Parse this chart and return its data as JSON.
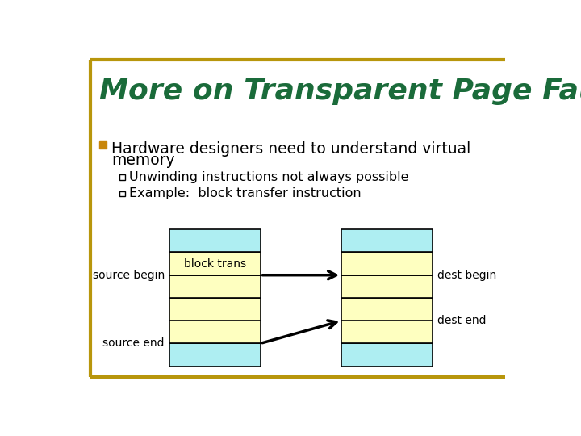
{
  "title": "More on Transparent Page Faults",
  "title_color": "#1a6b3a",
  "title_fontsize": 26,
  "bg_color": "#ffffff",
  "border_color": "#b8960c",
  "bullet_color": "#c8860a",
  "bullet_text_line1": "Hardware designers need to understand virtual",
  "bullet_text_line2": "memory",
  "sub_bullets": [
    "Unwinding instructions not always possible",
    "Example:  block transfer instruction"
  ],
  "cyan_color": "#aeeef2",
  "yellow_color": "#feffc0",
  "block_trans_label": "block trans",
  "source_begin_label": "source begin",
  "source_end_label": "source end",
  "dest_begin_label": "dest begin",
  "dest_end_label": "dest end"
}
